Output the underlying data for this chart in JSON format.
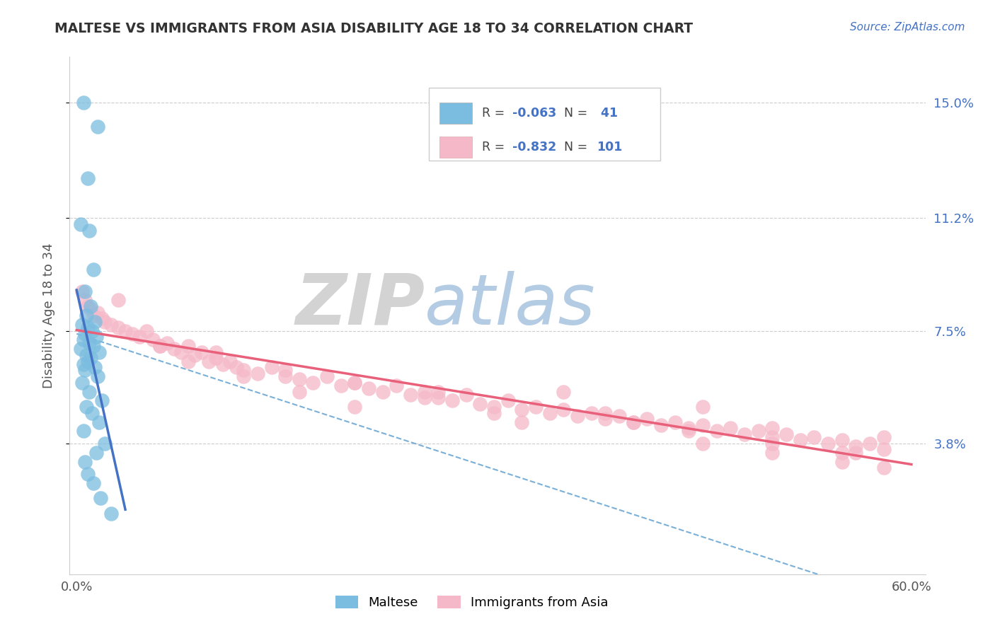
{
  "title": "MALTESE VS IMMIGRANTS FROM ASIA DISABILITY AGE 18 TO 34 CORRELATION CHART",
  "source": "Source: ZipAtlas.com",
  "ylabel": "Disability Age 18 to 34",
  "xlim": [
    0.0,
    60.0
  ],
  "ylim": [
    0.0,
    16.5
  ],
  "xtick_values": [
    0.0,
    10.0,
    20.0,
    30.0,
    40.0,
    50.0,
    60.0
  ],
  "xticklabels": [
    "0.0%",
    "",
    "",
    "",
    "",
    "",
    "60.0%"
  ],
  "ytick_values": [
    3.8,
    7.5,
    11.2,
    15.0
  ],
  "ytick_labels": [
    "3.8%",
    "7.5%",
    "11.2%",
    "15.0%"
  ],
  "color_blue": "#7bbde0",
  "color_pink": "#f5b8c8",
  "color_blue_line": "#4472c4",
  "color_pink_line": "#e8607a",
  "color_dashed": "#7ab0d8",
  "watermark_zip": "#c8ccd0",
  "watermark_atlas": "#a8c4e0",
  "maltese_x": [
    0.5,
    1.5,
    0.8,
    0.3,
    0.9,
    1.2,
    0.6,
    1.0,
    0.7,
    1.3,
    0.4,
    0.8,
    1.1,
    0.6,
    1.4,
    0.5,
    0.9,
    1.2,
    0.3,
    1.6,
    0.7,
    1.0,
    0.8,
    0.5,
    1.3,
    0.6,
    1.5,
    0.4,
    0.9,
    1.8,
    0.7,
    1.1,
    1.6,
    0.5,
    2.0,
    1.4,
    0.6,
    0.8,
    1.2,
    1.7,
    2.5
  ],
  "maltese_y": [
    15.0,
    14.2,
    12.5,
    11.0,
    10.8,
    9.5,
    8.8,
    8.3,
    8.0,
    7.8,
    7.7,
    7.6,
    7.5,
    7.4,
    7.3,
    7.2,
    7.1,
    7.0,
    6.9,
    6.8,
    6.7,
    6.6,
    6.5,
    6.4,
    6.3,
    6.2,
    6.0,
    5.8,
    5.5,
    5.2,
    5.0,
    4.8,
    4.5,
    4.2,
    3.8,
    3.5,
    3.2,
    2.8,
    2.5,
    2.0,
    1.5
  ],
  "asia_x": [
    0.4,
    0.6,
    0.8,
    1.0,
    1.2,
    1.5,
    1.8,
    2.0,
    2.5,
    3.0,
    3.5,
    4.0,
    4.5,
    5.0,
    5.5,
    6.0,
    6.5,
    7.0,
    7.5,
    8.0,
    8.5,
    9.0,
    9.5,
    10.0,
    10.5,
    11.0,
    11.5,
    12.0,
    13.0,
    14.0,
    15.0,
    16.0,
    17.0,
    18.0,
    19.0,
    20.0,
    21.0,
    22.0,
    23.0,
    24.0,
    25.0,
    26.0,
    27.0,
    28.0,
    29.0,
    30.0,
    31.0,
    32.0,
    33.0,
    34.0,
    35.0,
    36.0,
    37.0,
    38.0,
    39.0,
    40.0,
    41.0,
    42.0,
    43.0,
    44.0,
    45.0,
    46.0,
    47.0,
    48.0,
    49.0,
    50.0,
    51.0,
    52.0,
    53.0,
    54.0,
    55.0,
    56.0,
    57.0,
    58.0,
    8.0,
    12.0,
    16.0,
    20.0,
    25.0,
    30.0,
    35.0,
    40.0,
    45.0,
    50.0,
    55.0,
    58.0,
    45.0,
    50.0,
    55.0,
    58.0,
    3.0,
    6.0,
    10.0,
    15.0,
    20.0,
    26.0,
    32.0,
    38.0,
    44.0,
    50.0,
    56.0
  ],
  "asia_y": [
    8.8,
    8.5,
    8.3,
    8.2,
    8.0,
    8.1,
    7.9,
    7.8,
    7.7,
    7.6,
    7.5,
    7.4,
    7.3,
    7.5,
    7.2,
    7.0,
    7.1,
    6.9,
    6.8,
    7.0,
    6.7,
    6.8,
    6.5,
    6.6,
    6.4,
    6.5,
    6.3,
    6.2,
    6.1,
    6.3,
    6.0,
    5.9,
    5.8,
    6.0,
    5.7,
    5.8,
    5.6,
    5.5,
    5.7,
    5.4,
    5.5,
    5.3,
    5.2,
    5.4,
    5.1,
    5.0,
    5.2,
    4.9,
    5.0,
    4.8,
    4.9,
    4.7,
    4.8,
    4.6,
    4.7,
    4.5,
    4.6,
    4.4,
    4.5,
    4.3,
    4.4,
    4.2,
    4.3,
    4.1,
    4.2,
    4.0,
    4.1,
    3.9,
    4.0,
    3.8,
    3.9,
    3.7,
    3.8,
    3.6,
    6.5,
    6.0,
    5.5,
    5.8,
    5.3,
    4.8,
    5.5,
    4.5,
    5.0,
    4.3,
    3.5,
    4.0,
    3.8,
    3.5,
    3.2,
    3.0,
    8.5,
    7.0,
    6.8,
    6.2,
    5.0,
    5.5,
    4.5,
    4.8,
    4.2,
    3.8,
    3.5
  ]
}
